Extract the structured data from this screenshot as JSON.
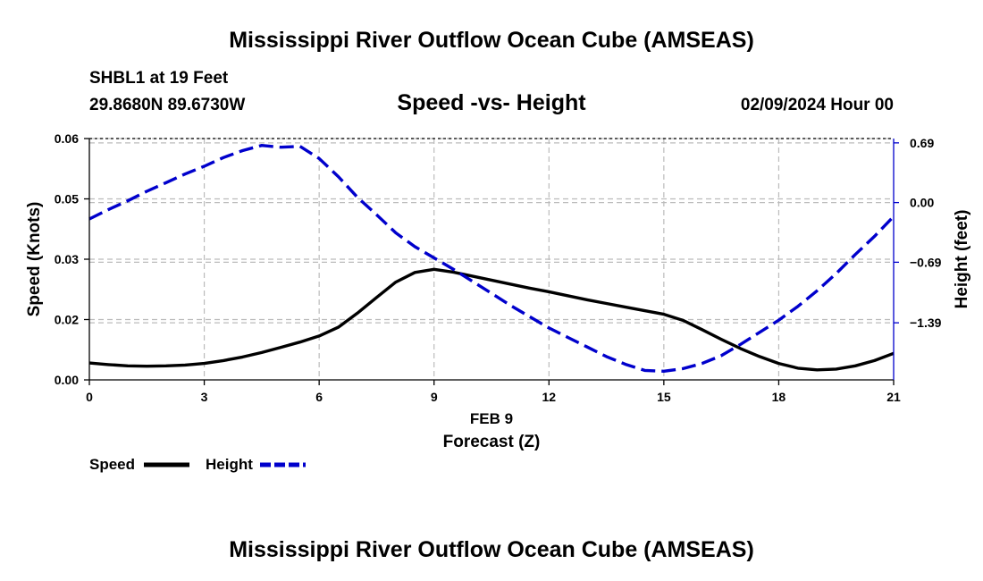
{
  "page": {
    "title_top": "Mississippi River Outflow Ocean Cube (AMSEAS)",
    "title_bottom": "Mississippi River Outflow Ocean Cube (AMSEAS)",
    "station": "SHBL1 at 19 Feet",
    "coords": "29.8680N  89.6730W",
    "datetime": "02/09/2024 Hour 00"
  },
  "colors": {
    "speed": "#000000",
    "height": "#0000cc",
    "grid": "#bbbbbb"
  },
  "chart_data": {
    "type": "line",
    "title": "Speed -vs- Height",
    "xlabel_date": "FEB 9",
    "xlabel": "Forecast (Z)",
    "ylabel": "Speed (Knots)",
    "y2label": "Height (feet)",
    "xlim": [
      0,
      21
    ],
    "ylim": [
      0,
      0.06
    ],
    "y2lim": [
      -2.05,
      0.74
    ],
    "x_ticks": [
      0,
      3,
      6,
      9,
      12,
      15,
      18,
      21
    ],
    "y_ticks": [
      0,
      0.015,
      0.03,
      0.045,
      0.06
    ],
    "y_tick_labels": [
      "0.00",
      "0.02",
      "0.03",
      "0.05",
      "0.06"
    ],
    "y2_ticks": [
      0.69,
      0.0,
      -0.69,
      -1.39
    ],
    "y2_tick_labels": [
      "0.69",
      "0.00",
      "−0.69",
      "−1.39"
    ],
    "legend": [
      {
        "label": "Speed",
        "style": "solid"
      },
      {
        "label": "Height",
        "style": "dashed"
      }
    ],
    "series": [
      {
        "name": "Speed",
        "axis": "left",
        "style": "solid",
        "x": [
          0,
          0.5,
          1,
          1.5,
          2,
          2.5,
          3,
          3.5,
          4,
          4.5,
          5,
          5.5,
          6,
          6.5,
          7,
          7.5,
          8,
          8.5,
          9,
          9.5,
          10,
          10.5,
          11,
          11.5,
          12,
          12.5,
          13,
          13.5,
          14,
          14.5,
          15,
          15.5,
          16,
          16.5,
          17,
          17.5,
          18,
          18.5,
          19,
          19.5,
          20,
          20.5,
          21
        ],
        "values": [
          0.0042,
          0.0038,
          0.0035,
          0.0034,
          0.0035,
          0.0037,
          0.0041,
          0.0048,
          0.0057,
          0.0068,
          0.0081,
          0.0094,
          0.0109,
          0.0131,
          0.0166,
          0.0205,
          0.0243,
          0.0267,
          0.0275,
          0.0268,
          0.0258,
          0.0248,
          0.0238,
          0.0228,
          0.0219,
          0.0209,
          0.0199,
          0.019,
          0.0181,
          0.0172,
          0.0163,
          0.0148,
          0.0125,
          0.0101,
          0.0078,
          0.0058,
          0.0041,
          0.0029,
          0.0025,
          0.0027,
          0.0035,
          0.0048,
          0.0066
        ]
      },
      {
        "name": "Height",
        "axis": "right",
        "style": "dashed",
        "x": [
          0,
          0.5,
          1,
          1.5,
          2,
          2.5,
          3,
          3.5,
          4,
          4.5,
          5,
          5.5,
          6,
          6.5,
          7,
          7.5,
          8,
          8.5,
          9,
          9.5,
          10,
          10.5,
          11,
          11.5,
          12,
          12.5,
          13,
          13.5,
          14,
          14.5,
          15,
          15.5,
          16,
          16.5,
          17,
          17.5,
          18,
          18.5,
          19,
          19.5,
          20,
          20.5,
          21
        ],
        "values": [
          -0.19,
          -0.08,
          0.02,
          0.13,
          0.23,
          0.33,
          0.42,
          0.52,
          0.6,
          0.66,
          0.64,
          0.65,
          0.51,
          0.3,
          0.06,
          -0.14,
          -0.35,
          -0.51,
          -0.64,
          -0.77,
          -0.91,
          -1.05,
          -1.19,
          -1.32,
          -1.45,
          -1.56,
          -1.67,
          -1.78,
          -1.87,
          -1.94,
          -1.95,
          -1.92,
          -1.86,
          -1.77,
          -1.64,
          -1.5,
          -1.36,
          -1.2,
          -1.02,
          -0.82,
          -0.6,
          -0.39,
          -0.16
        ]
      }
    ]
  }
}
